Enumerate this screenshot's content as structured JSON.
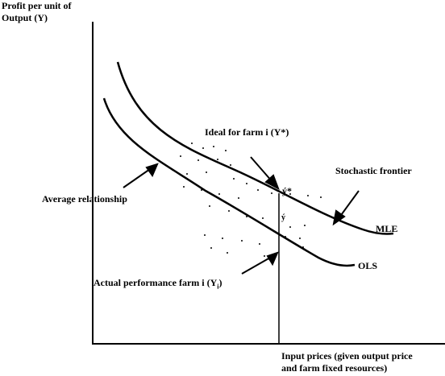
{
  "axes": {
    "y_label_line1": "Profit per unit of",
    "y_label_line2": "Output (Y)",
    "x_label_line1": "Input prices (given output price",
    "x_label_line2": "and farm fixed resources)"
  },
  "annotations": {
    "ideal": "Ideal for farm i (Y*)",
    "stochastic": "Stochastic frontier",
    "average": "Average relationship",
    "actual": "Actual performance farm i (Y",
    "actual_sub": "i",
    "actual_close": ")",
    "mle": "MLE",
    "ols": "OLS",
    "y_star_point": "ý*",
    "y_point": "ý"
  }
}
